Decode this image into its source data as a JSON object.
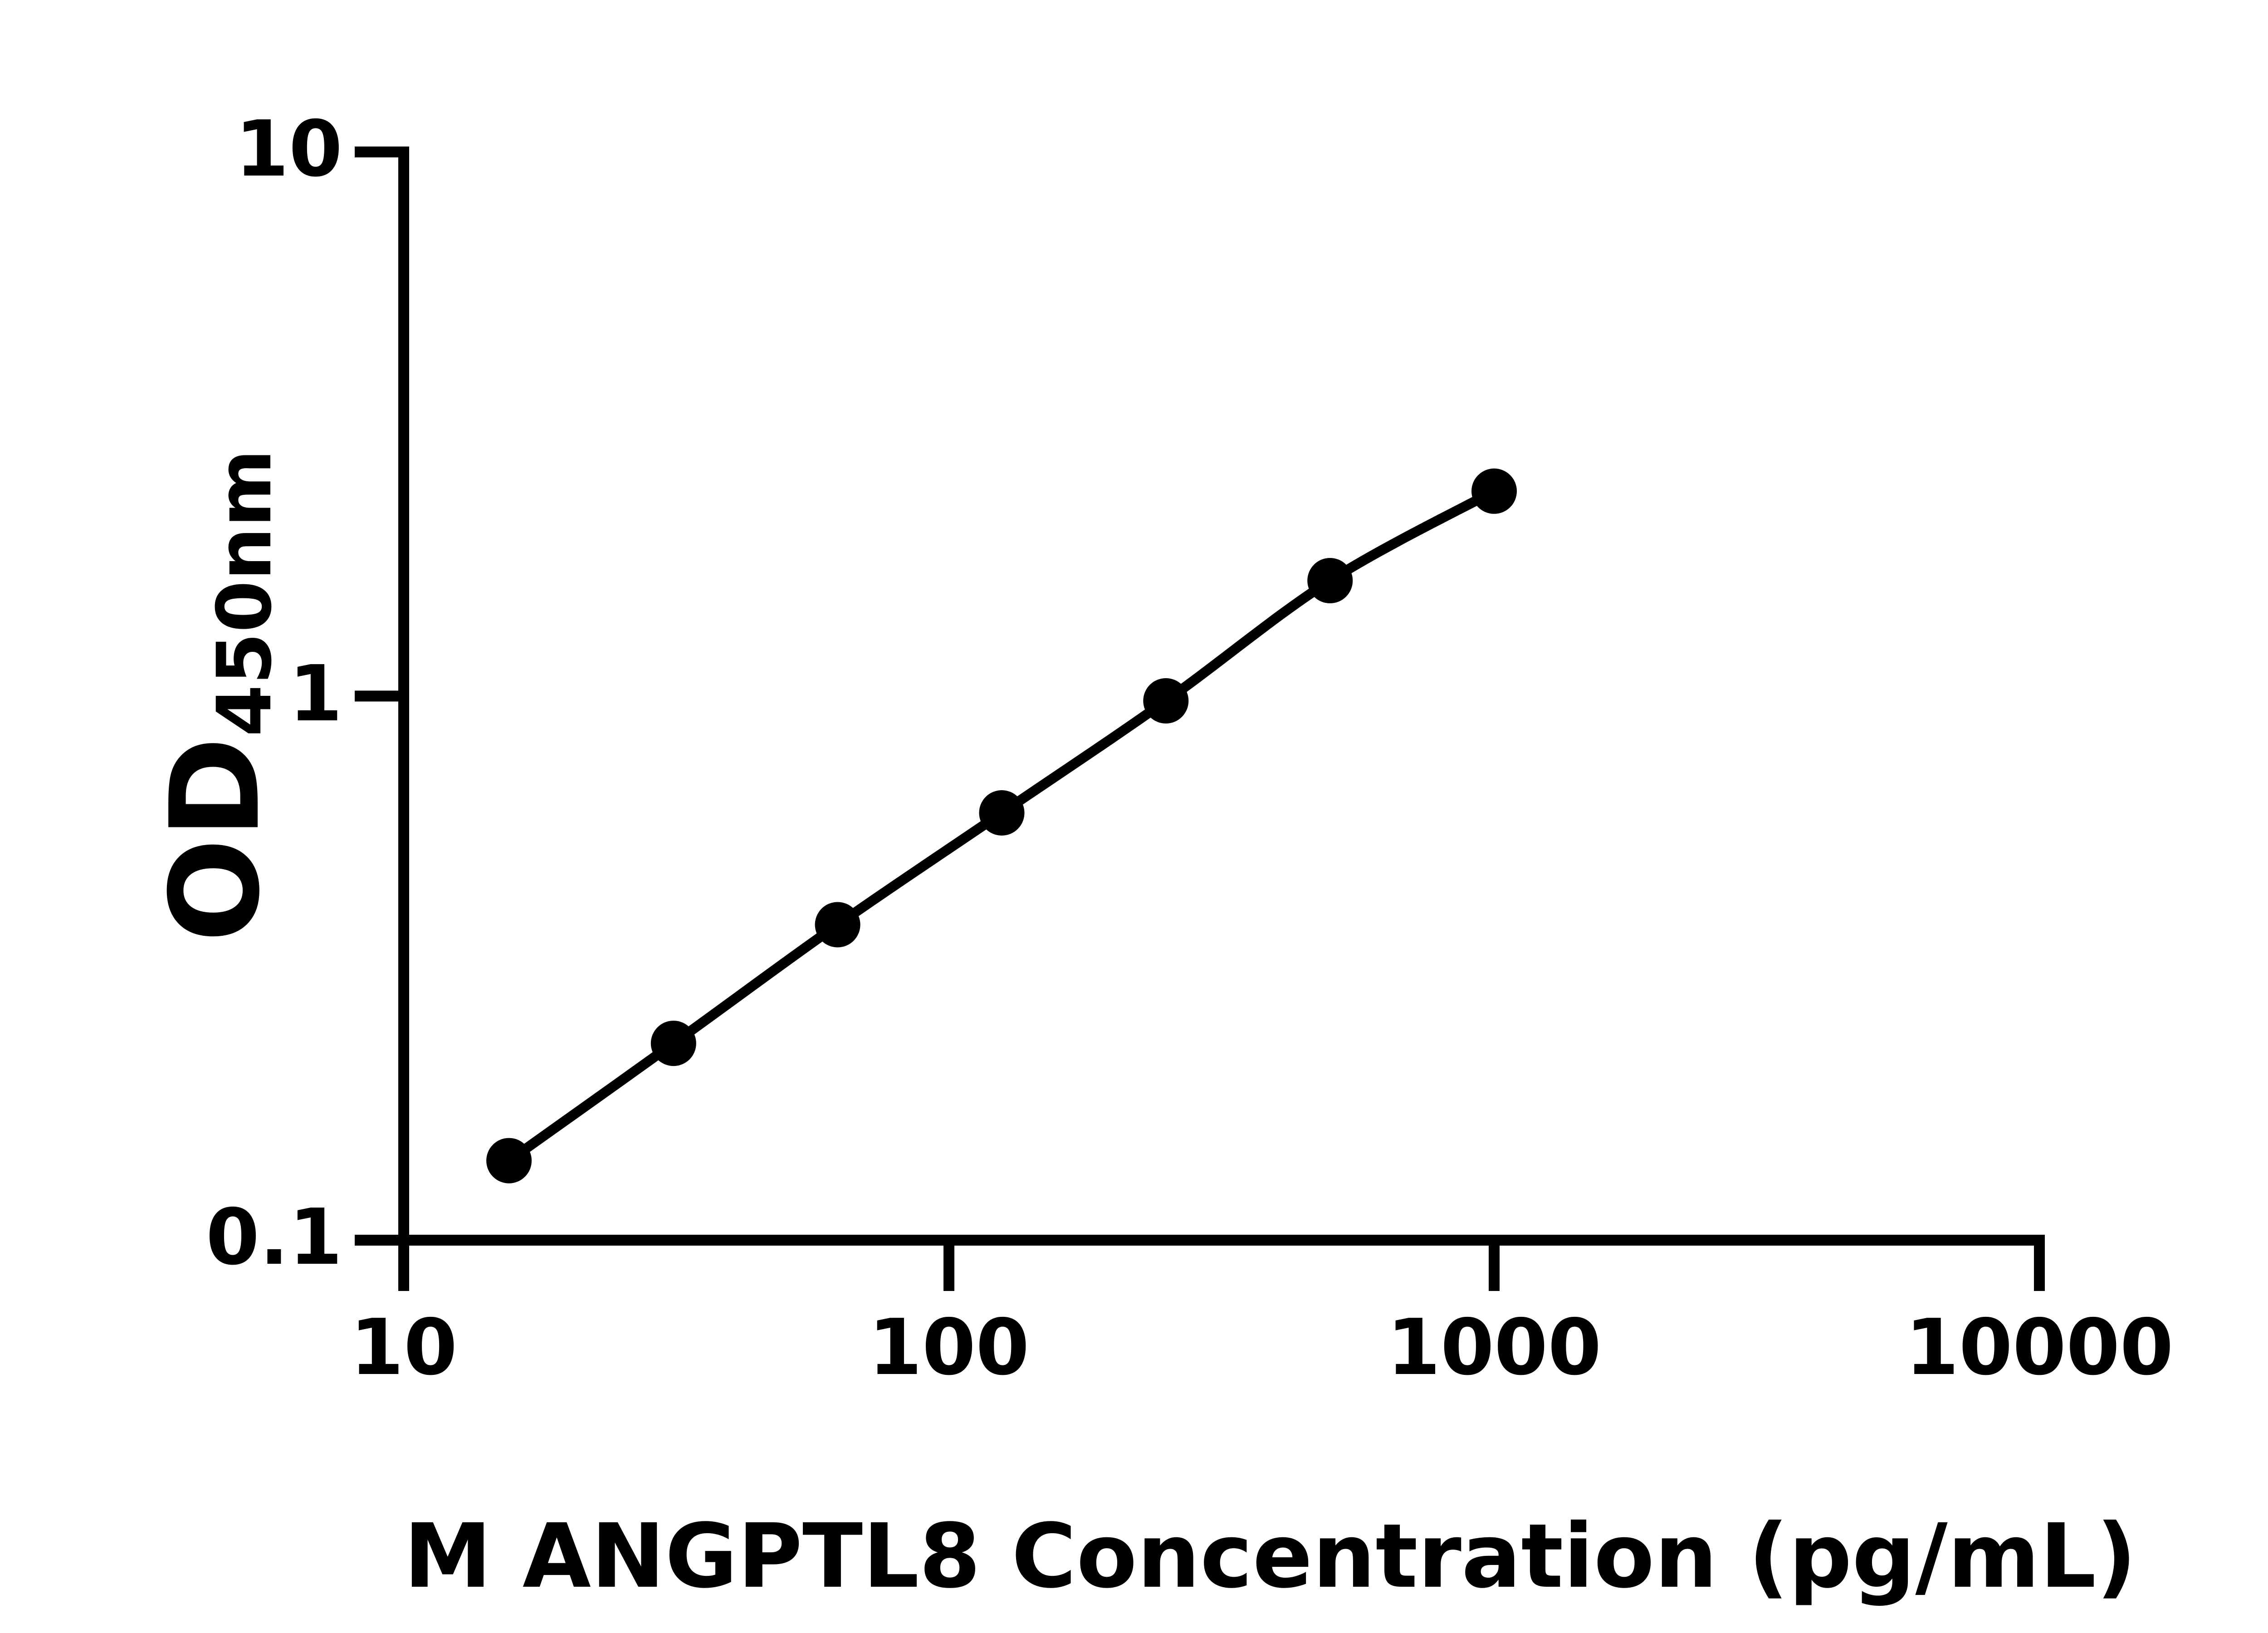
{
  "colors": {
    "foreground": "#000000",
    "background": "#ffffff"
  },
  "chart_data": {
    "type": "scatter",
    "title": "",
    "xlabel": "M ANGPTL8 Concentration (pg/mL)",
    "ylabel_main": "OD",
    "ylabel_sub": "450nm",
    "x_scale": "log",
    "y_scale": "log",
    "xlim": [
      10,
      10000
    ],
    "ylim": [
      0.1,
      10
    ],
    "x_tick_values": [
      10,
      100,
      1000,
      10000
    ],
    "x_tick_labels": [
      "10",
      "100",
      "1000",
      "10000"
    ],
    "y_tick_values": [
      10,
      1,
      0.1
    ],
    "y_tick_labels": [
      "10",
      "1",
      "0.1"
    ],
    "grid": false,
    "legend": false,
    "x": [
      15.6,
      31.25,
      62.5,
      125,
      250,
      500,
      1000
    ],
    "y_od": [
      0.14,
      0.23,
      0.38,
      0.61,
      0.98,
      1.63,
      2.38
    ],
    "marker": "filled-circle",
    "marker_color": "#000000",
    "line_color": "#000000"
  }
}
